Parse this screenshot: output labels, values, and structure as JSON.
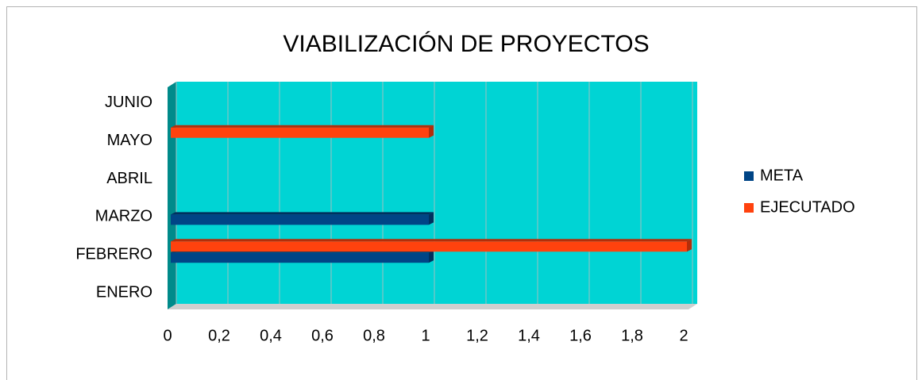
{
  "chart_data": {
    "type": "hbar",
    "title": "VIABILIZACIÓN DE PROYECTOS",
    "categories": [
      "ENERO",
      "FEBRERO",
      "MARZO",
      "ABRIL",
      "MAYO",
      "JUNIO"
    ],
    "series": [
      {
        "name": "META",
        "color": "#004586",
        "values": [
          0,
          1,
          1,
          0,
          0,
          0
        ]
      },
      {
        "name": "EJECUTADO",
        "color": "#ff420e",
        "values": [
          0,
          2,
          0,
          0,
          1,
          0
        ]
      }
    ],
    "xlim": [
      0,
      2
    ],
    "xticks": [
      0,
      {
        "value": 0.2,
        "label": "0,2"
      },
      {
        "value": 0.4,
        "label": "0,4"
      },
      {
        "value": 0.6,
        "label": "0,6"
      },
      {
        "value": 0.8,
        "label": "0,8"
      },
      1,
      {
        "value": 1.2,
        "label": "1,2"
      },
      {
        "value": 1.4,
        "label": "1,4"
      },
      {
        "value": 1.6,
        "label": "1,6"
      },
      {
        "value": 1.8,
        "label": "1,8"
      },
      2
    ],
    "grid": true,
    "legend": "right"
  }
}
